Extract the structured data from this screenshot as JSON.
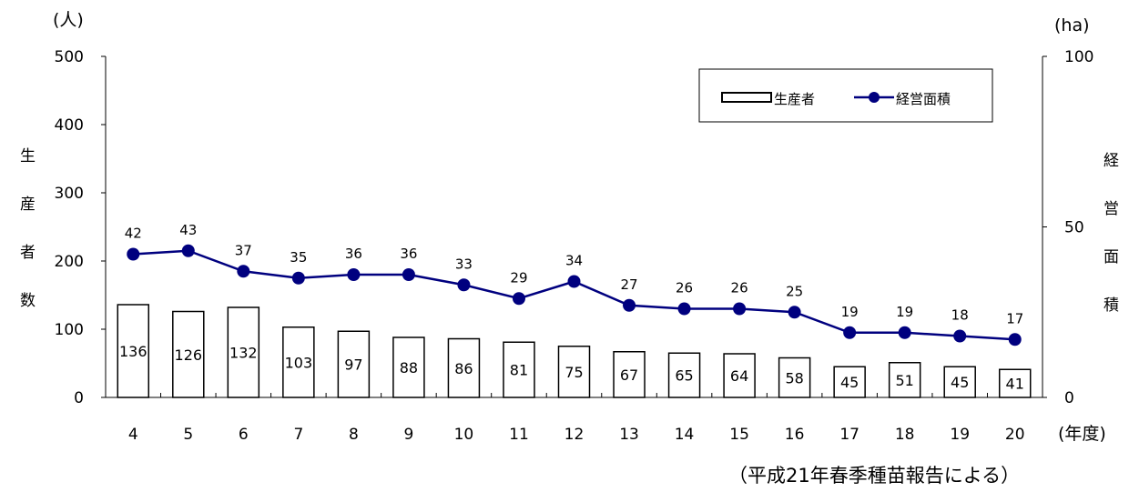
{
  "chart_data": {
    "type": "bar",
    "categories": [
      "4",
      "5",
      "6",
      "7",
      "8",
      "9",
      "10",
      "11",
      "12",
      "13",
      "14",
      "15",
      "16",
      "17",
      "18",
      "19",
      "20"
    ],
    "series": [
      {
        "name": "生産者",
        "type": "bar",
        "axis": "left",
        "values": [
          136,
          126,
          132,
          103,
          97,
          88,
          86,
          81,
          75,
          67,
          65,
          64,
          58,
          45,
          51,
          45,
          41
        ]
      },
      {
        "name": "経営面積",
        "type": "line",
        "axis": "right",
        "values": [
          42,
          43,
          37,
          35,
          36,
          36,
          33,
          29,
          34,
          27,
          26,
          26,
          25,
          19,
          19,
          18,
          17
        ],
        "color": "#00007f"
      }
    ],
    "left_axis": {
      "unit": "(人)",
      "label_chars": [
        "生",
        "産",
        "者",
        "数"
      ],
      "ylim": [
        0,
        500
      ],
      "ticks": [
        0,
        100,
        200,
        300,
        400,
        500
      ]
    },
    "right_axis": {
      "unit": "(ha)",
      "label_chars": [
        "経",
        "営",
        "面",
        "積"
      ],
      "ylim": [
        0,
        100
      ],
      "ticks": [
        0,
        50,
        100
      ]
    },
    "xlabel": "(年度)",
    "source_note": "（平成21年春季種苗報告による）",
    "legend": {
      "position": "top-right"
    }
  }
}
